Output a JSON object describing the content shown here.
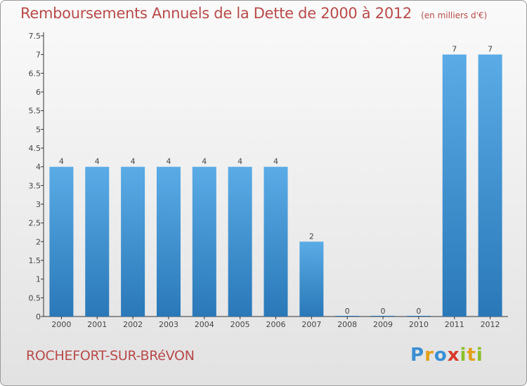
{
  "chart_data": {
    "type": "bar",
    "title": "Remboursements Annuels de la Dette de 2000 à 2012",
    "subtitle": "(en milliers d'€)",
    "xlabel": "",
    "ylabel": "",
    "categories": [
      "2000",
      "2001",
      "2002",
      "2003",
      "2004",
      "2005",
      "2006",
      "2007",
      "2008",
      "2009",
      "2010",
      "2011",
      "2012"
    ],
    "values": [
      4,
      4,
      4,
      4,
      4,
      4,
      4,
      2,
      0,
      0,
      0,
      7,
      7
    ],
    "data_labels": [
      "4",
      "4",
      "4",
      "4",
      "4",
      "4",
      "4",
      "2",
      "0",
      "0",
      "0",
      "7",
      "7"
    ],
    "ylim": [
      0,
      7.5
    ],
    "yticks": [
      "0",
      "0.5",
      "1",
      "1.5",
      "2",
      "2.5",
      "3",
      "3.5",
      "4",
      "4.5",
      "5",
      "5.5",
      "6",
      "6.5",
      "7",
      "7.5"
    ],
    "grid": false,
    "legend": "none",
    "bar_color_top": "#5aabe6",
    "bar_color_bottom": "#2a78b8"
  },
  "footer": {
    "commune": "ROCHEFORT-SUR-BRéVON",
    "brand_letters": [
      {
        "ch": "P",
        "color": "#3a8fd4"
      },
      {
        "ch": "r",
        "color": "#e2a01a"
      },
      {
        "ch": "o",
        "color": "#3a8fd4"
      },
      {
        "ch": "x",
        "color": "#d83a2a"
      },
      {
        "ch": "i",
        "color": "#8dbf2a"
      },
      {
        "ch": "t",
        "color": "#e2a01a"
      },
      {
        "ch": "i",
        "color": "#8dbf2a"
      }
    ]
  },
  "colors": {
    "title": "#b94a4a",
    "axis": "#333333"
  }
}
